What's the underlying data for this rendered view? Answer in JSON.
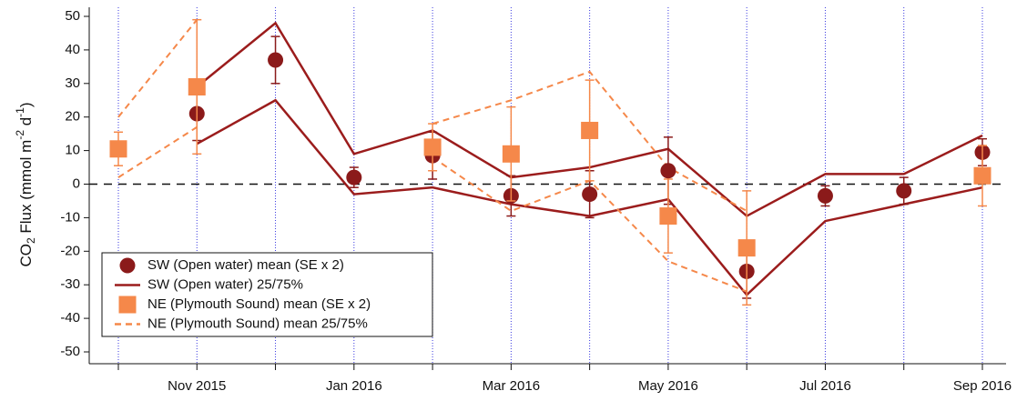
{
  "chart_data": {
    "type": "errorbar-line",
    "ylabel": [
      "CO",
      "2",
      " Flux (mmol m",
      "-2",
      " d",
      "-1",
      ")"
    ],
    "categories": [
      null,
      "Nov 2015",
      null,
      "Jan 2016",
      null,
      "Mar 2016",
      null,
      "May 2016",
      null,
      "Jul 2016",
      null,
      "Sep 2016"
    ],
    "ylim": [
      -55,
      50
    ],
    "yticks": [
      -50,
      -40,
      -30,
      -20,
      -10,
      0,
      10,
      20,
      30,
      40,
      50
    ],
    "grid": "x",
    "reference_line": 0,
    "legend": "lower-left",
    "series": [
      {
        "name": "SW (Open water) mean (SE x 2)",
        "kind": "circle",
        "color": "#8b1a1a",
        "values": [
          null,
          21,
          37,
          2,
          8.5,
          -3.5,
          -3,
          4,
          -26,
          -3.5,
          -2,
          9.5
        ],
        "errors": [
          null,
          8,
          7,
          3,
          7,
          6,
          7,
          10,
          8,
          3,
          4,
          4
        ]
      },
      {
        "name": "SW (Open water) 25/75%",
        "kind": "band-lines",
        "color": "#9b1c1c",
        "dash": false,
        "high": [
          null,
          29,
          48,
          9,
          16,
          2,
          5,
          10.5,
          -9.5,
          3,
          3,
          14.5
        ],
        "low": [
          null,
          12,
          25,
          -3,
          -1,
          -6,
          -9.5,
          -4.5,
          -33,
          -11,
          -6,
          -1
        ]
      },
      {
        "name": "NE (Plymouth Sound) mean (SE x 2)",
        "kind": "square",
        "color": "#f5884a",
        "values": [
          10.5,
          29,
          null,
          null,
          11,
          9,
          16,
          -9.5,
          -19,
          null,
          null,
          2.5
        ],
        "errors": [
          5,
          20,
          null,
          null,
          7,
          14,
          15,
          11,
          17,
          null,
          null,
          9
        ]
      },
      {
        "name": "NE (Plymouth Sound) mean 25/75%",
        "kind": "band-lines",
        "color": "#f5884a",
        "dash": true,
        "high": [
          20,
          49,
          null,
          null,
          18,
          25,
          33.5,
          5,
          -8,
          null,
          null,
          null
        ],
        "low": [
          2,
          17,
          null,
          null,
          8,
          -8,
          1,
          -23,
          -32,
          null,
          null,
          null
        ]
      }
    ]
  }
}
